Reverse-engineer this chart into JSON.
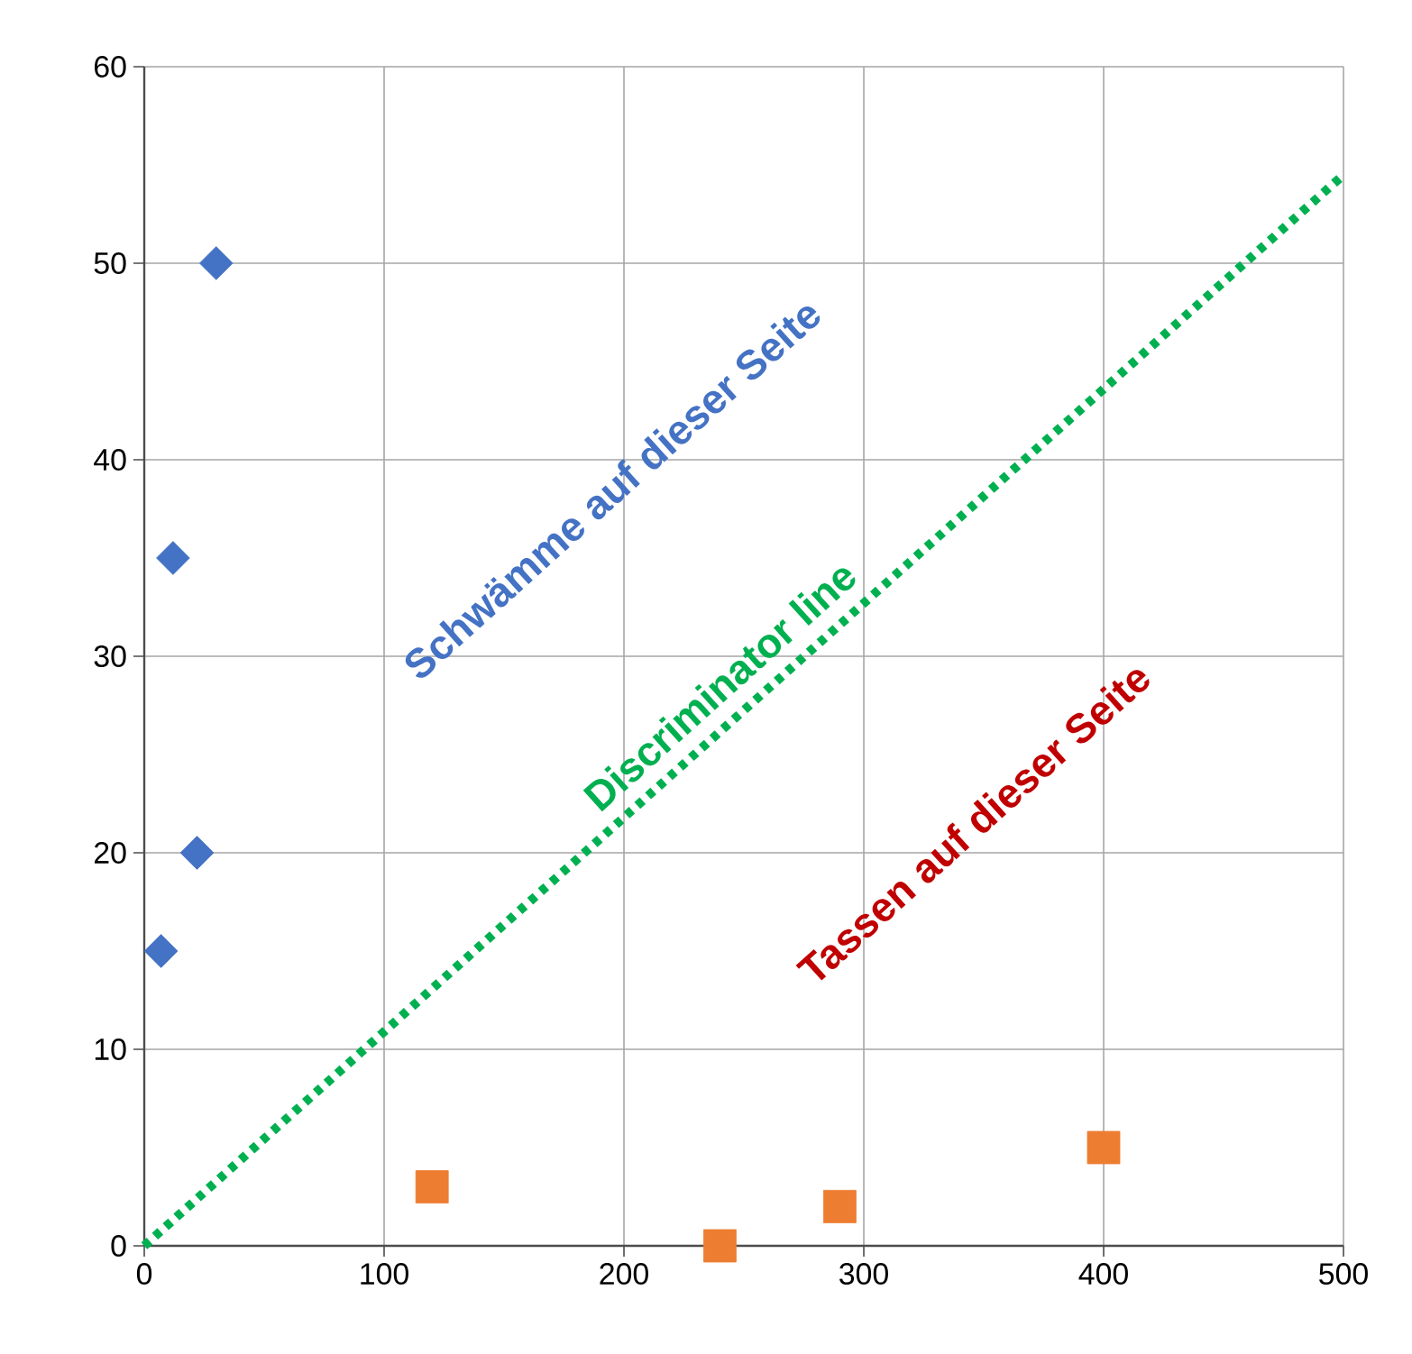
{
  "chart_data": {
    "type": "scatter",
    "xlim": [
      0,
      500
    ],
    "ylim": [
      0,
      60
    ],
    "xticks": [
      0,
      100,
      200,
      300,
      400,
      500
    ],
    "yticks": [
      0,
      10,
      20,
      30,
      40,
      50,
      60
    ],
    "grid": true,
    "series": [
      {
        "marker": "diamond",
        "color": "#4472c4",
        "x": [
          7,
          12,
          22,
          30
        ],
        "values": [
          15,
          35,
          20,
          50
        ]
      },
      {
        "marker": "square",
        "color": "#ed7d31",
        "x": [
          120,
          240,
          290,
          400
        ],
        "values": [
          3,
          0,
          2,
          5
        ]
      },
      {
        "type": "line",
        "marker": "none",
        "line_style": "dotted",
        "color": "#00b050",
        "x": [
          0,
          500
        ],
        "values": [
          0,
          54.5
        ]
      }
    ],
    "annotations": [
      "Schwämme auf dieser Seite",
      "Discriminator line",
      "Tassen auf dieser Seite"
    ]
  }
}
